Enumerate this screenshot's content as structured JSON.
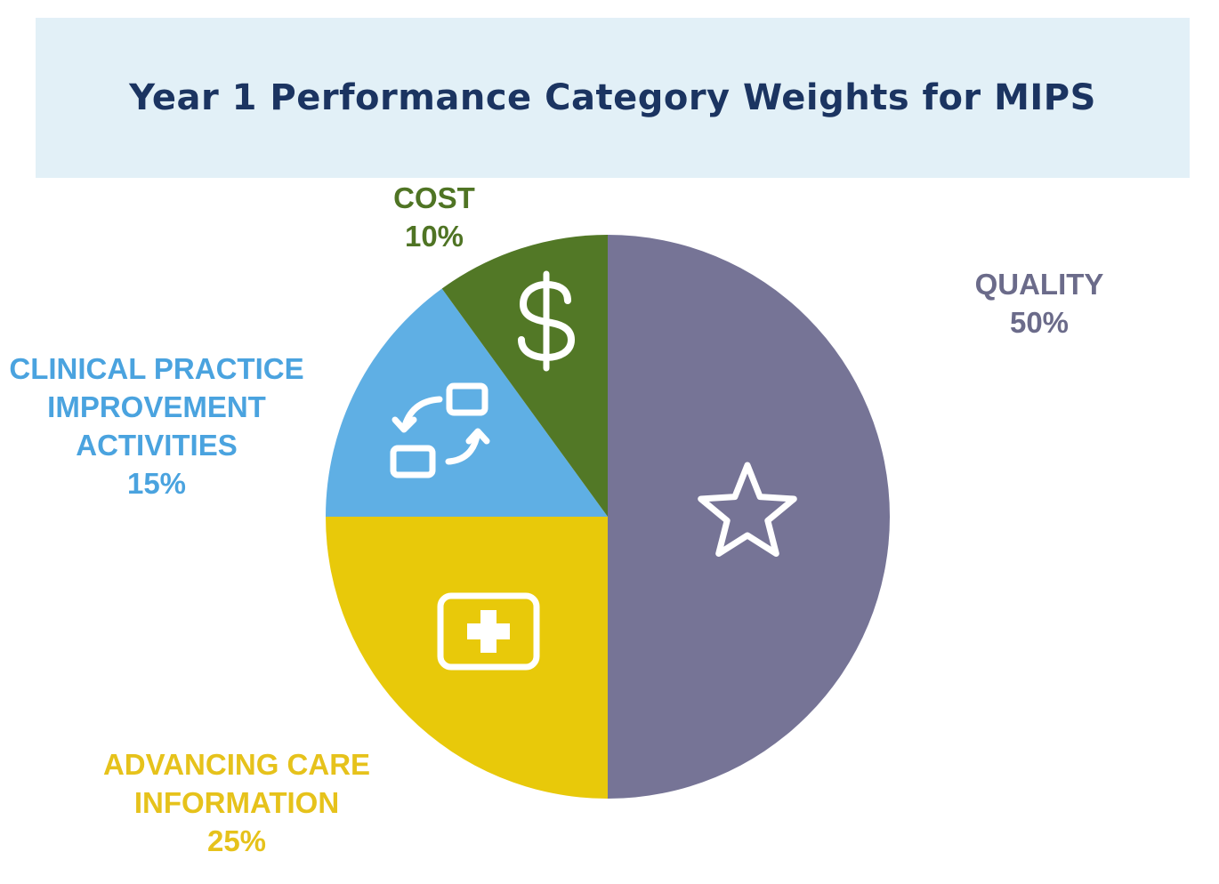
{
  "chart_data": {
    "type": "pie",
    "title": "Year 1 Performance Category Weights for MIPS",
    "title_color": "#1b3461",
    "start": "top",
    "direction": "clockwise",
    "slices": [
      {
        "key": "quality",
        "label_lines": [
          "QUALITY"
        ],
        "value": 50,
        "value_text": "50%",
        "color": "#767496",
        "label_color": "#6b6b8a",
        "icon": "star-icon"
      },
      {
        "key": "aci",
        "label_lines": [
          "ADVANCING CARE",
          "INFORMATION"
        ],
        "value": 25,
        "value_text": "25%",
        "color": "#e8c90a",
        "label_color": "#e6c21b",
        "icon": "medical-kit-icon"
      },
      {
        "key": "cpia",
        "label_lines": [
          "CLINICAL PRACTICE",
          "IMPROVEMENT",
          "ACTIVITIES"
        ],
        "value": 15,
        "value_text": "15%",
        "color": "#5fafe4",
        "label_color": "#4aa3df",
        "icon": "exchange-arrows-icon"
      },
      {
        "key": "cost",
        "label_lines": [
          "COST"
        ],
        "value": 10,
        "value_text": "10%",
        "color": "#527826",
        "label_color": "#4f7424",
        "icon": "dollar-icon"
      }
    ]
  }
}
